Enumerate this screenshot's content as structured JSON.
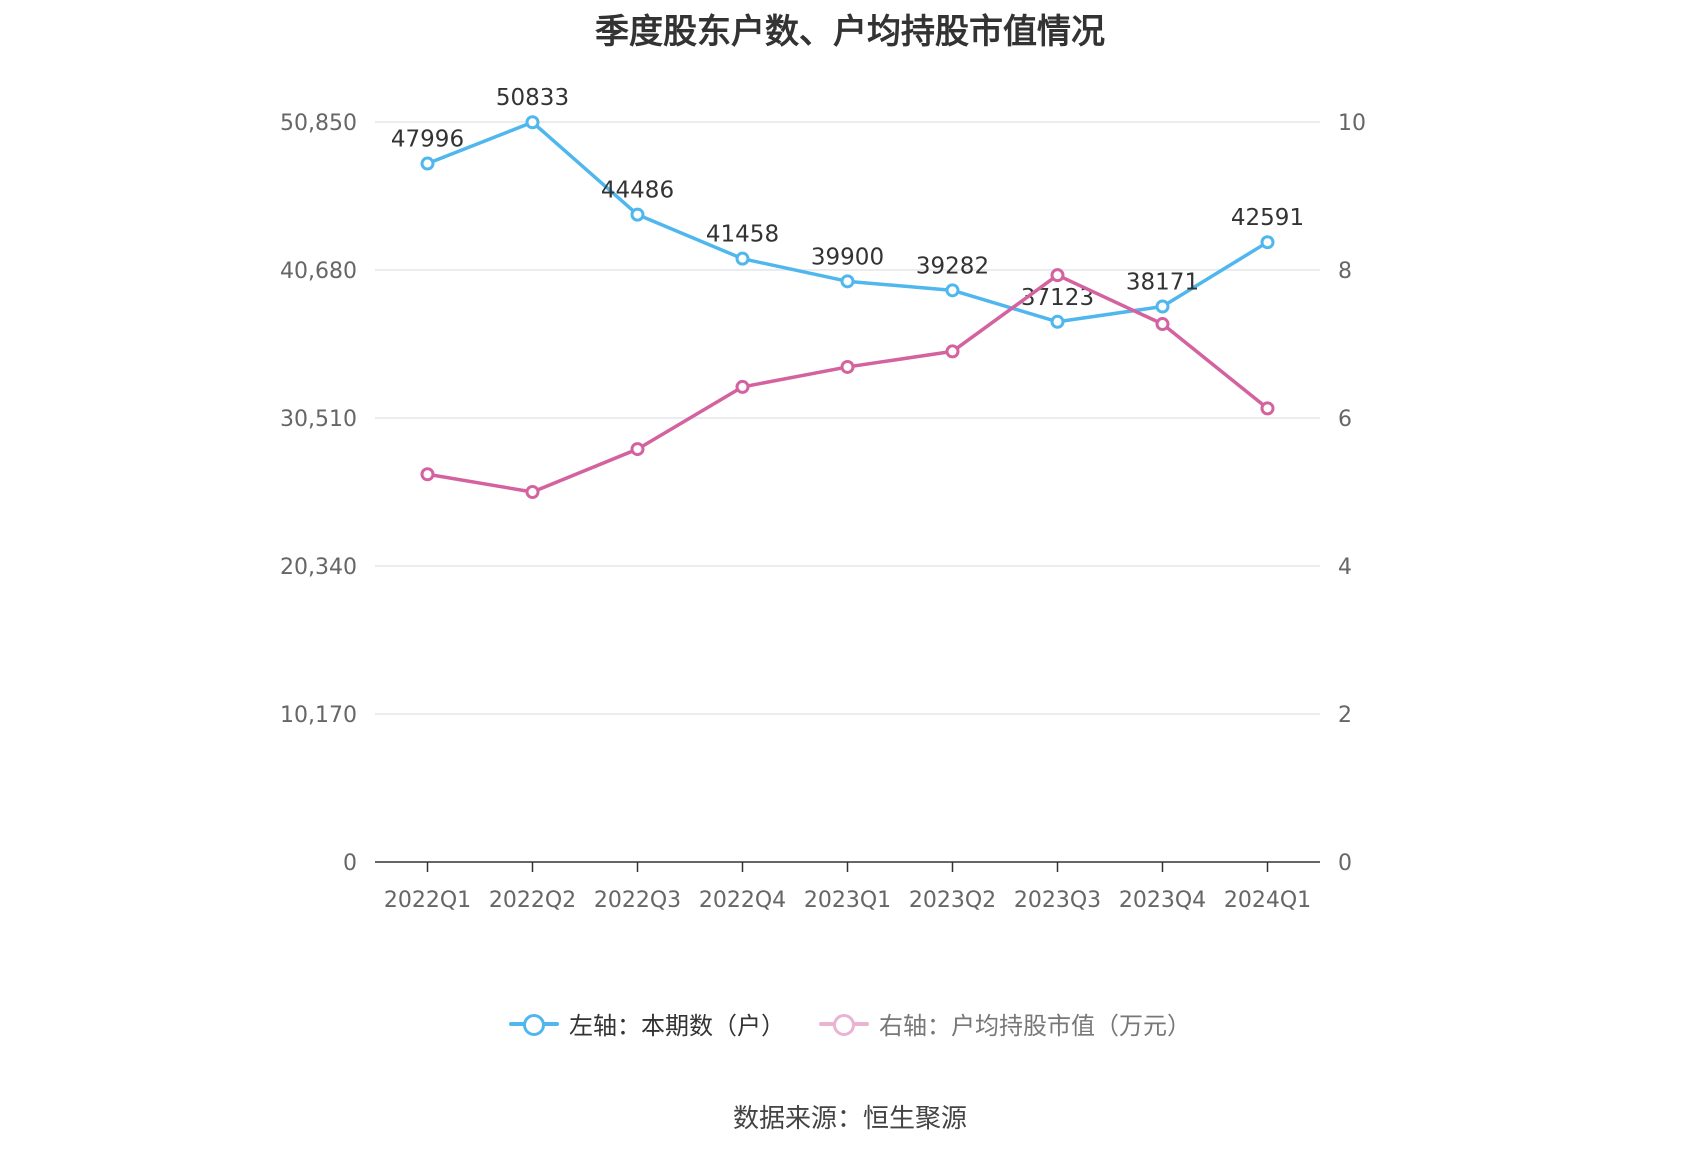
{
  "title": "季度股东户数、户均持股市值情况",
  "source": "数据来源：恒生聚源",
  "legend": [
    {
      "label": "左轴：本期数（户）",
      "color": "#4fb7ee"
    },
    {
      "label": "右轴：户均持股市值（万元）",
      "color": "#e89ac9"
    }
  ],
  "chart_data": {
    "type": "line",
    "categories": [
      "2022Q1",
      "2022Q2",
      "2022Q3",
      "2022Q4",
      "2023Q1",
      "2023Q2",
      "2023Q3",
      "2023Q4",
      "2024Q1"
    ],
    "left_axis": {
      "ticks": [
        "0",
        "10,170",
        "20,340",
        "30,510",
        "40,680",
        "50,850"
      ],
      "ylim": [
        0,
        50850
      ]
    },
    "right_axis": {
      "ticks": [
        "0",
        "2",
        "4",
        "6",
        "8",
        "10"
      ],
      "ylim": [
        0,
        10
      ]
    },
    "grid": true,
    "legend_position": "bottom",
    "series": [
      {
        "name": "左轴：本期数（户）",
        "axis": "left",
        "color": "#4fb7ee",
        "values": [
          47996,
          50833,
          44486,
          41458,
          39900,
          39282,
          37123,
          38171,
          42591
        ],
        "labels": [
          "47996",
          "50833",
          "44486",
          "41458",
          "39900",
          "39282",
          "37123",
          "38171",
          "42591"
        ]
      },
      {
        "name": "右轴：户均持股市值（万元）",
        "axis": "right",
        "color": "#d4629f",
        "values": [
          5.24,
          5.0,
          5.58,
          6.42,
          6.69,
          6.9,
          7.93,
          7.27,
          6.13
        ]
      }
    ]
  }
}
